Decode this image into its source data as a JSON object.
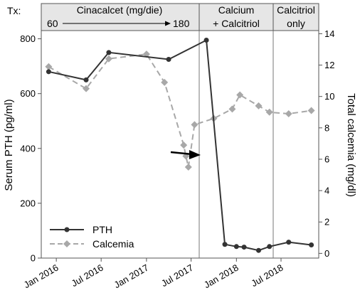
{
  "chart_data": {
    "type": "line",
    "treatment_label": "Tx:",
    "treatment_bands": [
      {
        "lines": [
          "Cinacalcet (mg/die)"
        ],
        "dose_start": "60",
        "dose_end": "180"
      },
      {
        "lines": [
          "Calcium",
          "+ Calcitriol"
        ]
      },
      {
        "lines": [
          "Calcitriol",
          "only"
        ]
      }
    ],
    "x_ticks": [
      "Jan 2016",
      "Jul 2016",
      "Jan 2017",
      "Jul 2017",
      "Jan 2018",
      "Jul 2018"
    ],
    "y_left": {
      "label": "Serum PTH (pg/ml)",
      "ticks": [
        0,
        200,
        400,
        600,
        800
      ],
      "range": [
        0,
        830
      ]
    },
    "y_right": {
      "label": "Total calcemia (mg/dl)",
      "ticks": [
        0,
        2,
        4,
        6,
        8,
        10,
        12,
        14
      ],
      "range": [
        -0.3,
        14.2
      ]
    },
    "series": [
      {
        "name": "PTH",
        "axis": "left",
        "color": "#333333",
        "style": "solid",
        "marker": "circle",
        "x": [
          "2015-12-01",
          "2016-05-01",
          "2016-08-01",
          "2017-04-01",
          "2017-09-01",
          "2017-11-15",
          "2018-01-01",
          "2018-02-01",
          "2018-04-01",
          "2018-05-15",
          "2018-08-01",
          "2018-11-01"
        ],
        "y": [
          680,
          650,
          750,
          725,
          795,
          50,
          42,
          40,
          28,
          42,
          58,
          48
        ]
      },
      {
        "name": "Calcemia",
        "axis": "right",
        "color": "#a8a8a8",
        "style": "dashed",
        "marker": "diamond",
        "x": [
          "2015-12-01",
          "2016-05-01",
          "2016-08-01",
          "2017-01-01",
          "2017-03-15",
          "2017-06-01",
          "2017-06-10",
          "2017-06-20",
          "2017-07-15",
          "2017-10-01",
          "2017-12-15",
          "2018-01-15",
          "2018-04-01",
          "2018-05-15",
          "2018-08-01",
          "2018-11-01"
        ],
        "y": [
          11.9,
          10.5,
          12.4,
          12.7,
          10.9,
          6.9,
          6.2,
          5.5,
          8.2,
          8.6,
          9.2,
          10.1,
          9.4,
          9.0,
          8.9,
          9.1
        ]
      }
    ],
    "legend_position": "bottom-left",
    "annotation": "arrow pointing at the PTH drop (mid-2017)",
    "grid": false
  }
}
